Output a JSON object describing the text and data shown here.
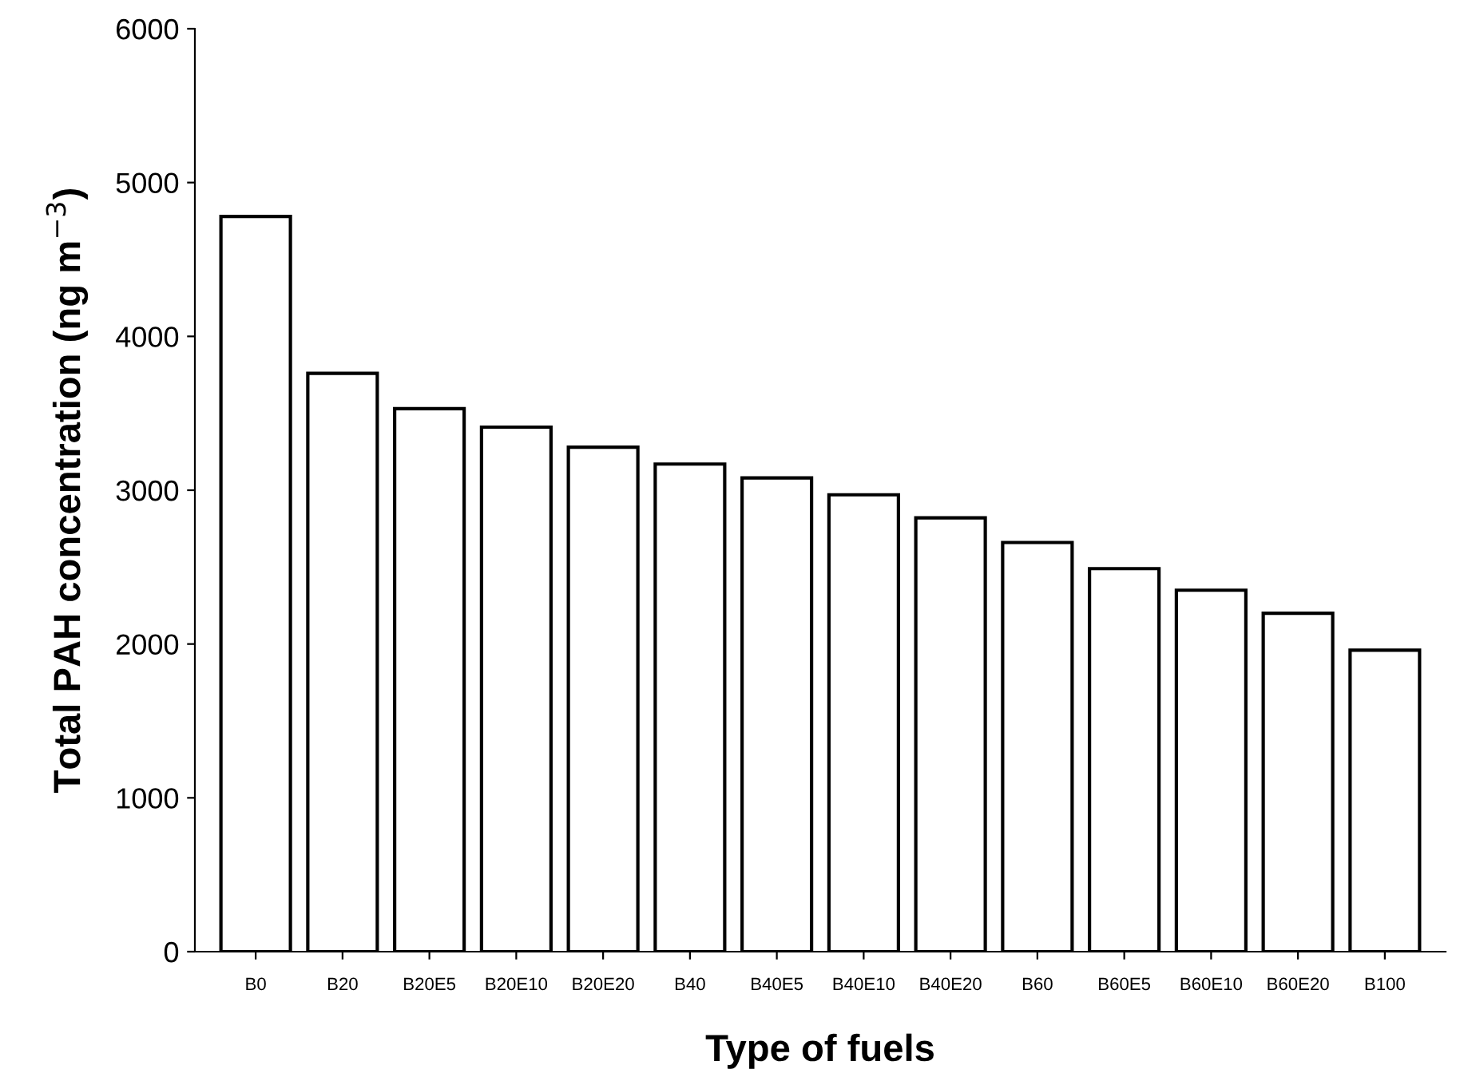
{
  "chart_data": {
    "type": "bar",
    "xlabel": "Type of fuels",
    "ylabel": "Total PAH concentration (ng m$^{−3}$)",
    "categories": [
      "B0",
      "B20",
      "B20E5",
      "B20E10",
      "B20E20",
      "B40",
      "B40E5",
      "B40E10",
      "B40E20",
      "B60",
      "B60E5",
      "B60E10",
      "B60E20",
      "B100"
    ],
    "values": [
      4780,
      3760,
      3530,
      3410,
      3280,
      3170,
      3080,
      2970,
      2820,
      2660,
      2490,
      2350,
      2200,
      1960
    ],
    "color": "#ffffff",
    "ylim": [
      0,
      6000
    ],
    "yticks": [
      0,
      1000,
      2000,
      3000,
      4000,
      5000,
      6000
    ],
    "grid": false
  }
}
